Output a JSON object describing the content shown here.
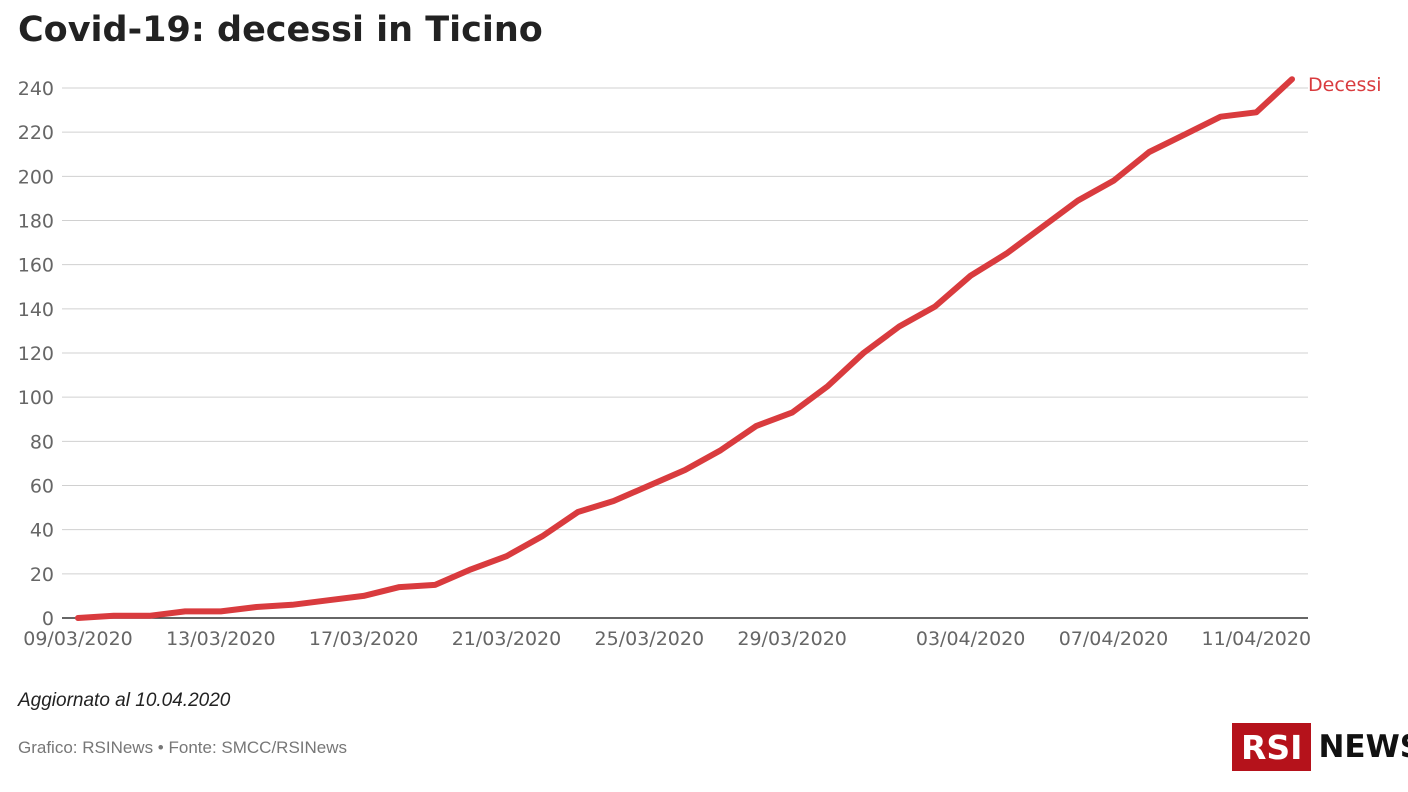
{
  "title": "Covid-19: decessi in Ticino",
  "updated": "Aggiornato al 10.04.2020",
  "credits": "Grafico: RSINews • Fonte: SMCC/RSINews",
  "logo": {
    "box_text": "RSI",
    "news_text": "NEWS",
    "color": "#b5121b"
  },
  "chart_data": {
    "type": "line",
    "title": "Covid-19: decessi in Ticino",
    "xlabel": "",
    "ylabel": "",
    "ylim": [
      0,
      240
    ],
    "yticks": [
      0,
      20,
      40,
      60,
      80,
      100,
      120,
      140,
      160,
      180,
      200,
      220,
      240
    ],
    "xticks": [
      "09/03/2020",
      "13/03/2020",
      "17/03/2020",
      "21/03/2020",
      "25/03/2020",
      "29/03/2020",
      "03/04/2020",
      "07/04/2020",
      "11/04/2020"
    ],
    "grid": true,
    "x": [
      "09/03/2020",
      "10/03/2020",
      "11/03/2020",
      "12/03/2020",
      "13/03/2020",
      "14/03/2020",
      "15/03/2020",
      "16/03/2020",
      "17/03/2020",
      "18/03/2020",
      "19/03/2020",
      "20/03/2020",
      "21/03/2020",
      "22/03/2020",
      "23/03/2020",
      "24/03/2020",
      "25/03/2020",
      "26/03/2020",
      "27/03/2020",
      "28/03/2020",
      "29/03/2020",
      "30/03/2020",
      "31/03/2020",
      "01/04/2020",
      "02/04/2020",
      "03/04/2020",
      "04/04/2020",
      "05/04/2020",
      "06/04/2020",
      "07/04/2020",
      "08/04/2020",
      "09/04/2020",
      "10/04/2020",
      "11/04/2020",
      "12/04/2020"
    ],
    "series": [
      {
        "name": "Decessi",
        "color": "#d93b3e",
        "values": [
          0,
          1,
          1,
          3,
          3,
          5,
          6,
          8,
          10,
          14,
          15,
          22,
          28,
          37,
          48,
          53,
          60,
          67,
          76,
          87,
          93,
          105,
          120,
          132,
          141,
          155,
          165,
          177,
          189,
          198,
          211,
          219,
          227,
          229,
          244
        ]
      }
    ]
  }
}
